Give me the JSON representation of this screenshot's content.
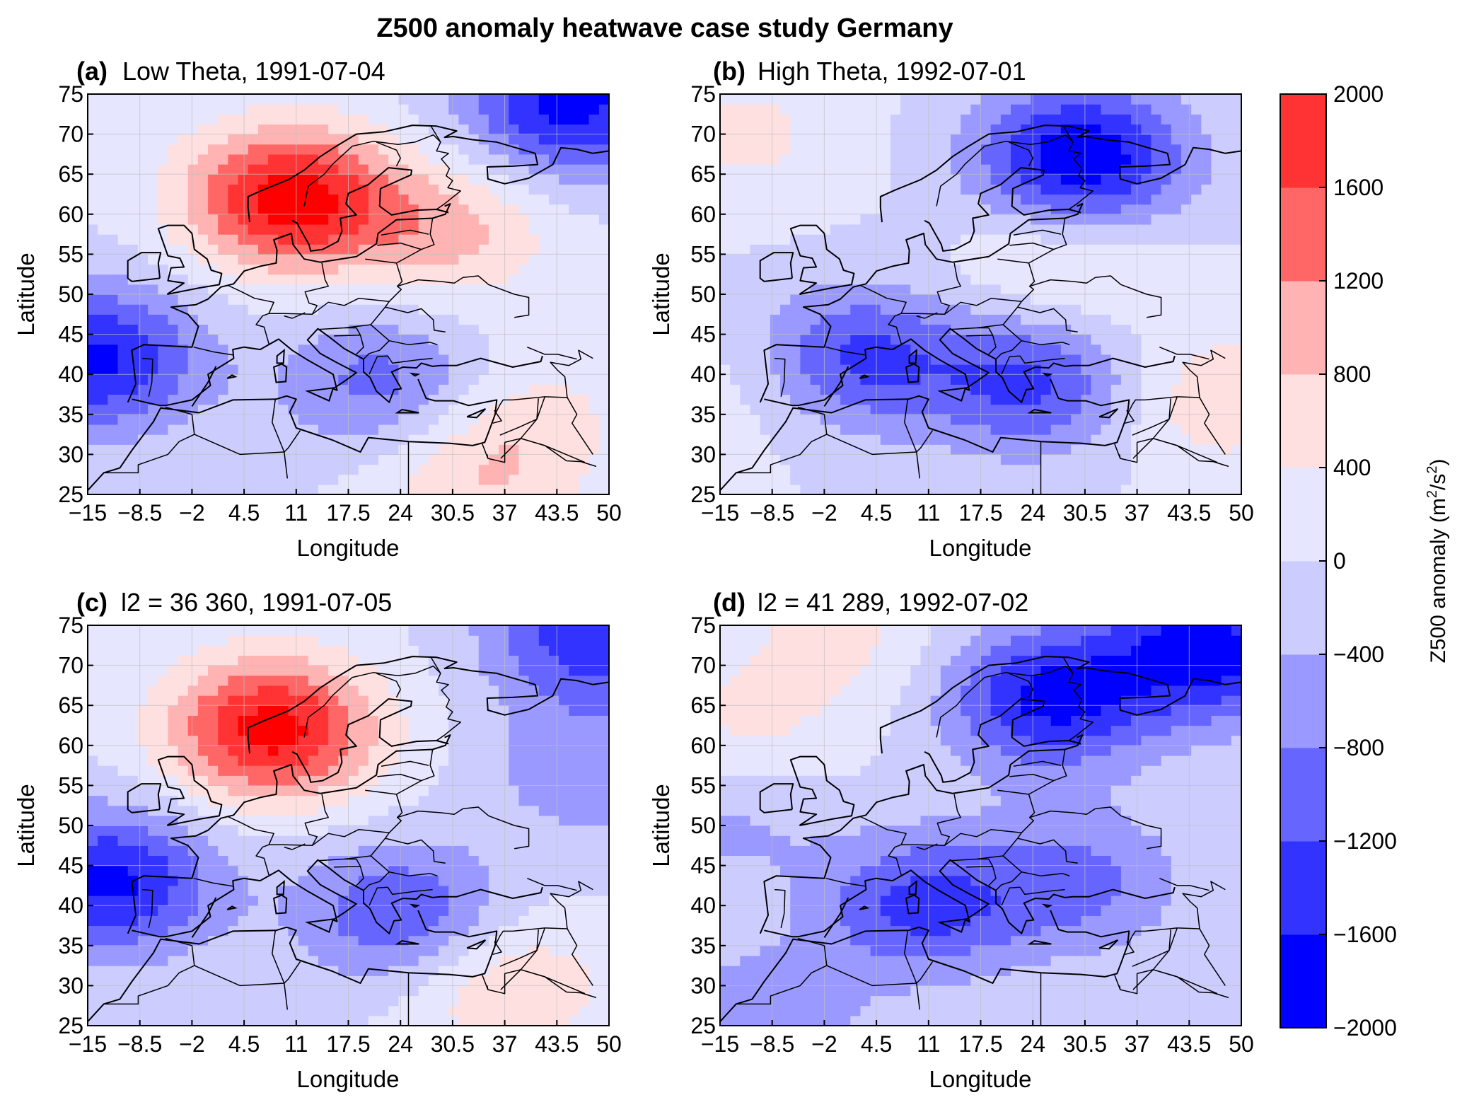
{
  "figure": {
    "title": "Z500 anomaly heatwave case study Germany",
    "colors": {
      "levels_colors": [
        "#0000ff",
        "#3333ff",
        "#6666ff",
        "#9999ff",
        "#ccccff",
        "#e6e6ff",
        "#ffe0e0",
        "#ffb3b3",
        "#ff6666",
        "#ff3333",
        "#ff0000"
      ],
      "coastline": "#000000",
      "grid": "#bfbfbf"
    }
  },
  "chart_data": [
    {
      "type": "heatmap",
      "panel": "(a)",
      "title": "Low Theta, 1991-07-04",
      "xlabel": "Longitude",
      "ylabel": "Latitude",
      "xlim": [
        -15,
        50
      ],
      "ylim": [
        25,
        75
      ],
      "xticks": [
        "−15",
        "−8.5",
        "−2",
        "4.5",
        "11",
        "17.5",
        "24",
        "30.5",
        "37",
        "43.5",
        "50"
      ],
      "yticks": [
        "25",
        "30",
        "35",
        "40",
        "45",
        "50",
        "55",
        "60",
        "65",
        "70",
        "75"
      ],
      "field_centers": [
        {
          "lon": 10,
          "lat": 62,
          "value": 2200
        },
        {
          "lon": 30,
          "lat": 58,
          "value": 900
        },
        {
          "lon": -14,
          "lat": 42,
          "value": -1700
        },
        {
          "lon": 22,
          "lat": 39,
          "value": -1000
        },
        {
          "lon": 45,
          "lat": 74,
          "value": -1800
        },
        {
          "lon": 40,
          "lat": 35,
          "value": 500
        },
        {
          "lon": 33,
          "lat": 27,
          "value": 700
        }
      ]
    },
    {
      "type": "heatmap",
      "panel": "(b)",
      "title": "High Theta, 1992-07-01",
      "xlabel": "Longitude",
      "ylabel": "Latitude",
      "xlim": [
        -15,
        50
      ],
      "ylim": [
        25,
        75
      ],
      "xticks": [
        "−15",
        "−8.5",
        "−2",
        "4.5",
        "11",
        "17.5",
        "24",
        "30.5",
        "37",
        "43.5",
        "50"
      ],
      "yticks": [
        "25",
        "30",
        "35",
        "40",
        "45",
        "50",
        "55",
        "60",
        "65",
        "70",
        "75"
      ],
      "field_centers": [
        {
          "lon": 30,
          "lat": 67,
          "value": -2000
        },
        {
          "lon": 2,
          "lat": 42,
          "value": -1300
        },
        {
          "lon": 24,
          "lat": 39,
          "value": -1300
        },
        {
          "lon": 28,
          "lat": 54,
          "value": 600
        },
        {
          "lon": -12,
          "lat": 70,
          "value": 500
        },
        {
          "lon": 47,
          "lat": 37,
          "value": 700
        },
        {
          "lon": -12,
          "lat": 38,
          "value": 300
        }
      ]
    },
    {
      "type": "heatmap",
      "panel": "(c)",
      "title": "l2 = 36 360, 1991-07-05",
      "xlabel": "Longitude",
      "ylabel": "Latitude",
      "xlim": [
        -15,
        50
      ],
      "ylim": [
        25,
        75
      ],
      "xticks": [
        "−15",
        "−8.5",
        "−2",
        "4.5",
        "11",
        "17.5",
        "24",
        "30.5",
        "37",
        "43.5",
        "50"
      ],
      "yticks": [
        "25",
        "30",
        "35",
        "40",
        "45",
        "50",
        "55",
        "60",
        "65",
        "70",
        "75"
      ],
      "field_centers": [
        {
          "lon": 8,
          "lat": 62,
          "value": 2200
        },
        {
          "lon": -12,
          "lat": 43,
          "value": -1700
        },
        {
          "lon": 24,
          "lat": 39,
          "value": -1200
        },
        {
          "lon": 48,
          "lat": 74,
          "value": -1500
        },
        {
          "lon": 48,
          "lat": 57,
          "value": -700
        },
        {
          "lon": 37,
          "lat": 30,
          "value": 800
        }
      ]
    },
    {
      "type": "heatmap",
      "panel": "(d)",
      "title": "l2 = 41 289, 1992-07-02",
      "xlabel": "Longitude",
      "ylabel": "Latitude",
      "xlim": [
        -15,
        50
      ],
      "ylim": [
        25,
        75
      ],
      "xticks": [
        "−15",
        "−8.5",
        "−2",
        "4.5",
        "11",
        "17.5",
        "24",
        "30.5",
        "37",
        "43.5",
        "50"
      ],
      "yticks": [
        "25",
        "30",
        "35",
        "40",
        "45",
        "50",
        "55",
        "60",
        "65",
        "70",
        "75"
      ],
      "field_centers": [
        {
          "lon": 26,
          "lat": 66,
          "value": -1700
        },
        {
          "lon": 46,
          "lat": 72,
          "value": -1800
        },
        {
          "lon": 10,
          "lat": 40,
          "value": -1300
        },
        {
          "lon": 30,
          "lat": 43,
          "value": -900
        },
        {
          "lon": -14,
          "lat": 51,
          "value": -500
        },
        {
          "lon": -12,
          "lat": 62,
          "value": 500
        },
        {
          "lon": 0,
          "lat": 74,
          "value": 500
        },
        {
          "lon": -10,
          "lat": 26,
          "value": -700
        }
      ]
    }
  ],
  "colorbar": {
    "label": "Z500 anomaly (m",
    "label_sup1": "2",
    "label_mid": "/s",
    "label_sup2": "2",
    "label_end": ")",
    "levels": [
      -2000,
      -1600,
      -1200,
      -800,
      -400,
      0,
      400,
      800,
      1200,
      1600,
      2000
    ],
    "tick_labels": [
      "−2000",
      "−1600",
      "−1200",
      "−800",
      "−400",
      "0",
      "400",
      "800",
      "1200",
      "1600",
      "2000"
    ]
  }
}
